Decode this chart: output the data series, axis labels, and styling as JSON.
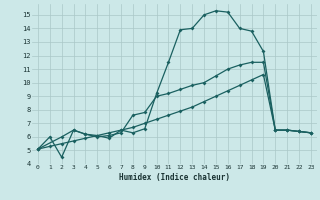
{
  "xlabel": "Humidex (Indice chaleur)",
  "bg_color": "#cce8e8",
  "grid_color": "#aac8c8",
  "line_color": "#1a6060",
  "xlim": [
    -0.5,
    23.5
  ],
  "ylim": [
    4,
    15.8
  ],
  "yticks": [
    4,
    5,
    6,
    7,
    8,
    9,
    10,
    11,
    12,
    13,
    14,
    15
  ],
  "xticks": [
    0,
    1,
    2,
    3,
    4,
    5,
    6,
    7,
    8,
    9,
    10,
    11,
    12,
    13,
    14,
    15,
    16,
    17,
    18,
    19,
    20,
    21,
    22,
    23
  ],
  "series1_x": [
    0,
    1,
    2,
    3,
    4,
    5,
    6,
    7,
    8,
    9,
    10,
    11,
    12,
    13,
    14,
    15,
    16,
    17,
    18,
    19,
    20,
    21,
    22,
    23
  ],
  "series1_y": [
    5.1,
    6.0,
    4.5,
    6.5,
    6.2,
    6.1,
    5.9,
    6.5,
    6.3,
    6.6,
    9.2,
    11.5,
    13.9,
    14.0,
    15.0,
    15.3,
    15.2,
    14.0,
    13.8,
    12.3,
    6.5,
    6.5,
    6.4,
    6.3
  ],
  "series2_x": [
    0,
    2,
    3,
    4,
    5,
    6,
    7,
    8,
    9,
    10,
    11,
    12,
    13,
    14,
    15,
    16,
    17,
    18,
    19,
    20,
    21,
    22,
    23
  ],
  "series2_y": [
    5.1,
    6.0,
    6.5,
    6.2,
    6.0,
    6.1,
    6.3,
    7.6,
    7.8,
    9.0,
    9.2,
    9.5,
    9.8,
    10.0,
    10.5,
    11.0,
    11.3,
    11.5,
    11.5,
    6.5,
    6.5,
    6.4,
    6.3
  ],
  "series3_x": [
    0,
    1,
    2,
    3,
    4,
    5,
    6,
    7,
    8,
    9,
    10,
    11,
    12,
    13,
    14,
    15,
    16,
    17,
    18,
    19,
    20,
    21,
    22,
    23
  ],
  "series3_y": [
    5.1,
    5.3,
    5.5,
    5.7,
    5.9,
    6.1,
    6.3,
    6.5,
    6.7,
    7.0,
    7.3,
    7.6,
    7.9,
    8.2,
    8.6,
    9.0,
    9.4,
    9.8,
    10.2,
    10.6,
    6.5,
    6.5,
    6.4,
    6.3
  ]
}
